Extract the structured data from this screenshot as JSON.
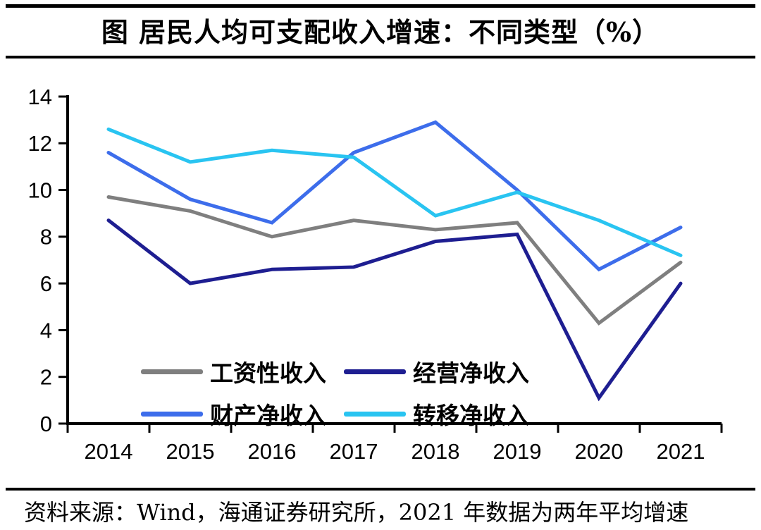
{
  "title": "图 居民人均可支配收入增速：不同类型（%）",
  "source": "资料来源：Wind，海通证券研究所，2021 年数据为两年平均增速",
  "chart_data": {
    "type": "line",
    "title": "图 居民人均可支配收入增速：不同类型（%）",
    "categories": [
      "2014",
      "2015",
      "2016",
      "2017",
      "2018",
      "2019",
      "2020",
      "2021"
    ],
    "series": [
      {
        "name": "工资性收入",
        "color": "#7F7F7F",
        "values": [
          9.7,
          9.1,
          8.0,
          8.7,
          8.3,
          8.6,
          4.3,
          6.9
        ]
      },
      {
        "name": "经营净收入",
        "color": "#1E1E91",
        "values": [
          8.7,
          6.0,
          6.6,
          6.7,
          7.8,
          8.1,
          1.1,
          6.0
        ]
      },
      {
        "name": "财产净收入",
        "color": "#3D6DEB",
        "values": [
          11.6,
          9.6,
          8.6,
          11.6,
          12.9,
          10.0,
          6.6,
          8.4
        ]
      },
      {
        "name": "转移净收入",
        "color": "#29C4F1",
        "values": [
          12.6,
          11.2,
          11.7,
          11.4,
          8.9,
          9.9,
          8.7,
          7.2
        ]
      }
    ],
    "ylim": [
      0,
      14
    ],
    "yticks": [
      0,
      2,
      4,
      6,
      8,
      10,
      12,
      14
    ],
    "xlabel": "",
    "ylabel": "",
    "grid": false,
    "legend_position": "inside-center-left"
  }
}
